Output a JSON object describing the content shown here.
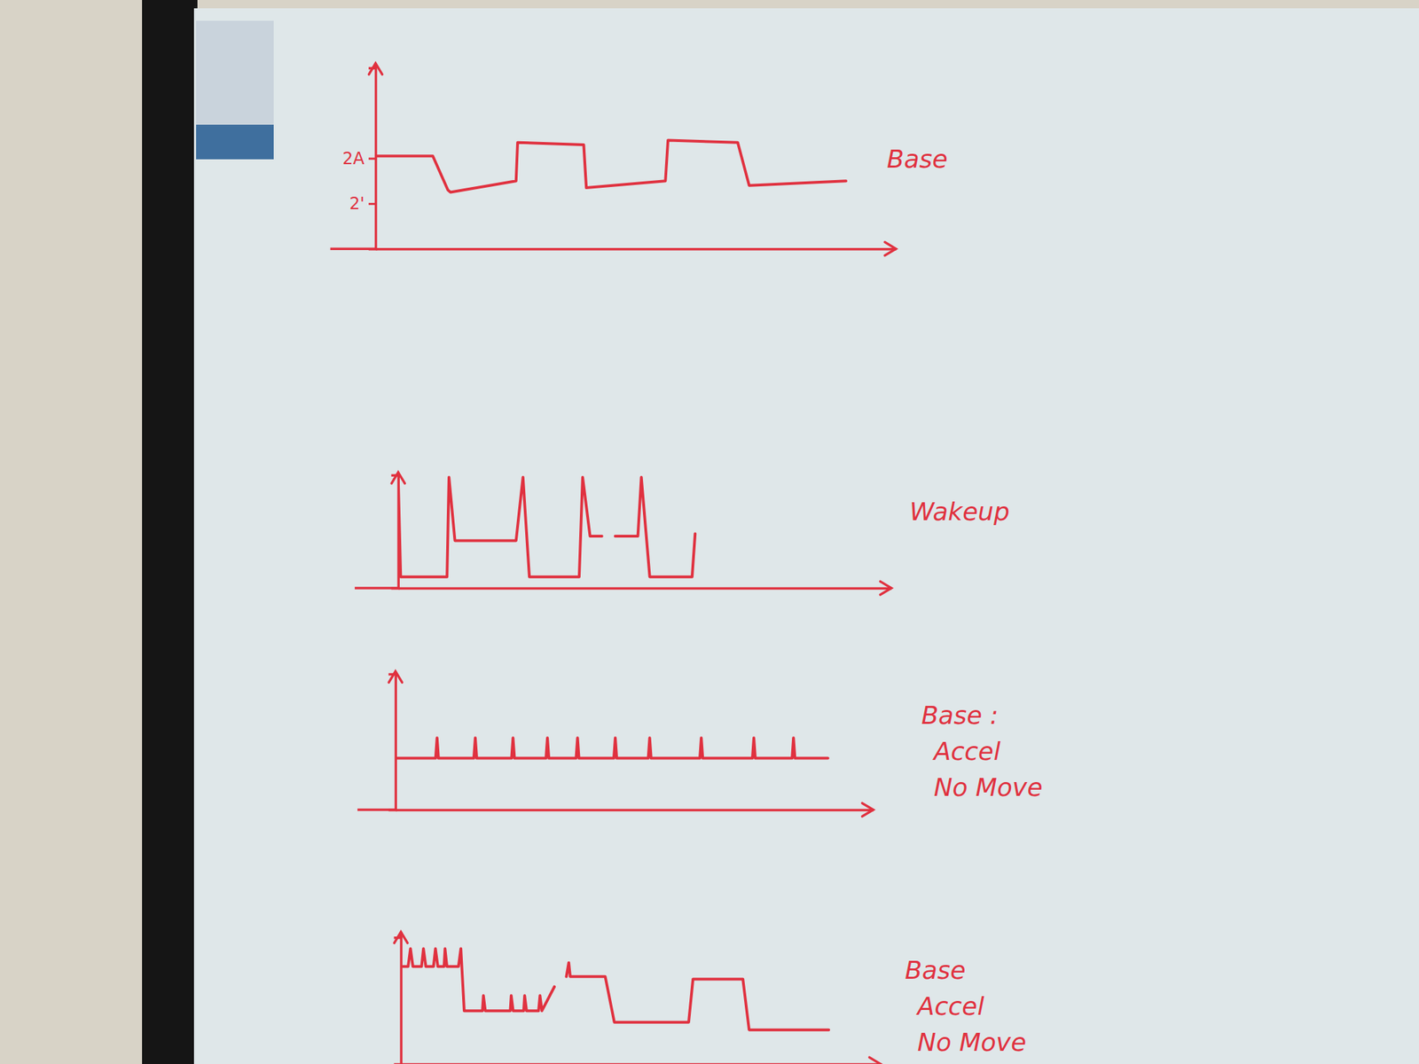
{
  "chart_data": [
    {
      "type": "line",
      "title": "Base",
      "x": [
        0,
        11,
        13.9,
        14.4,
        27,
        27.3,
        40,
        40.5,
        55.7,
        56.2,
        69.6,
        71.8,
        90.4
      ],
      "series": [
        {
          "color": "#e0313f",
          "values": [
            2.41,
            2.41,
            2.26,
            2.25,
            2.3,
            2.47,
            2.46,
            2.27,
            2.3,
            2.48,
            2.47,
            2.28,
            2.3
          ]
        }
      ],
      "xlim": [
        0,
        100
      ],
      "ylim": [
        2.0,
        2.8
      ],
      "yticks": [
        {
          "value": 2.4,
          "label": "2A"
        },
        {
          "value": 2.2,
          "label": "2'"
        }
      ],
      "tick_labels": "y"
    },
    {
      "type": "line",
      "title": "Wakeup",
      "x": [
        0,
        0.5,
        9.9,
        10.3,
        11.5,
        23.9,
        25.3,
        26.6,
        36.7,
        37.4,
        38.9,
        41.3,
        42.6,
        44,
        48.6,
        49.3,
        51,
        59.6,
        60.2
      ],
      "series": [
        {
          "color": "#e0313f",
          "values": [
            10,
            1,
            1,
            9.8,
            4.2,
            4.2,
            9.8,
            1,
            1,
            9.8,
            4.6,
            4.6,
            null,
            4.6,
            4.6,
            9.8,
            1,
            1,
            4.8
          ]
        }
      ],
      "xlim": [
        0,
        100
      ],
      "ylim": [
        0,
        10
      ],
      "tick_labels": false
    },
    {
      "type": "line",
      "title": [
        "Base :",
        "Accel",
        "No Move"
      ],
      "x": [
        0,
        8.4,
        8.7,
        9,
        16.4,
        16.7,
        17,
        24.3,
        24.6,
        24.9,
        31.5,
        31.8,
        32.1,
        37.8,
        38.1,
        38.4,
        45.7,
        46,
        46.3,
        52.9,
        53.2,
        53.5,
        63.7,
        64,
        64.3,
        74.7,
        75,
        75.3,
        83,
        83.3,
        83.6,
        90.5
      ],
      "series": [
        {
          "color": "#e0313f",
          "values": [
            3.8,
            3.8,
            5.3,
            3.8,
            3.8,
            5.3,
            3.8,
            3.8,
            5.3,
            3.8,
            3.8,
            5.3,
            3.8,
            3.8,
            5.3,
            3.8,
            3.8,
            5.3,
            3.8,
            3.8,
            5.3,
            3.8,
            3.8,
            5.3,
            3.8,
            3.8,
            5.3,
            3.8,
            3.8,
            5.3,
            3.8,
            3.8
          ]
        }
      ],
      "xlim": [
        0,
        100
      ],
      "ylim": [
        0,
        10
      ],
      "tick_labels": false
    },
    {
      "type": "line",
      "title": [
        "Base",
        "Accel",
        "No Move"
      ],
      "x": [
        0.4,
        1.5,
        2,
        2.5,
        4.3,
        4.7,
        5.2,
        6.8,
        7.2,
        7.7,
        9,
        9.2,
        9.6,
        12,
        12.5,
        13.2,
        17,
        17.2,
        17.6,
        22.8,
        23,
        23.4,
        25.6,
        25.8,
        26.2,
        28.7,
        29,
        29.4,
        32,
        33,
        34.5,
        35,
        35.3,
        42.6,
        44.5,
        60,
        60.9,
        71.3,
        72.6,
        89.2
      ],
      "series": [
        {
          "color": "#e0313f",
          "values": [
            7.7,
            7.7,
            9.1,
            7.7,
            7.7,
            9.1,
            7.7,
            7.7,
            9.1,
            7.7,
            7.7,
            9.1,
            7.7,
            7.7,
            9.1,
            4.2,
            4.2,
            5.4,
            4.2,
            4.2,
            5.4,
            4.2,
            4.2,
            5.4,
            4.2,
            4.2,
            5.4,
            4.2,
            6.1,
            null,
            6.9,
            8,
            6.9,
            6.9,
            3.3,
            3.3,
            6.7,
            6.7,
            2.7,
            2.7
          ]
        }
      ],
      "xlim": [
        0,
        100
      ],
      "ylim": [
        0,
        10
      ],
      "tick_labels": false
    }
  ]
}
